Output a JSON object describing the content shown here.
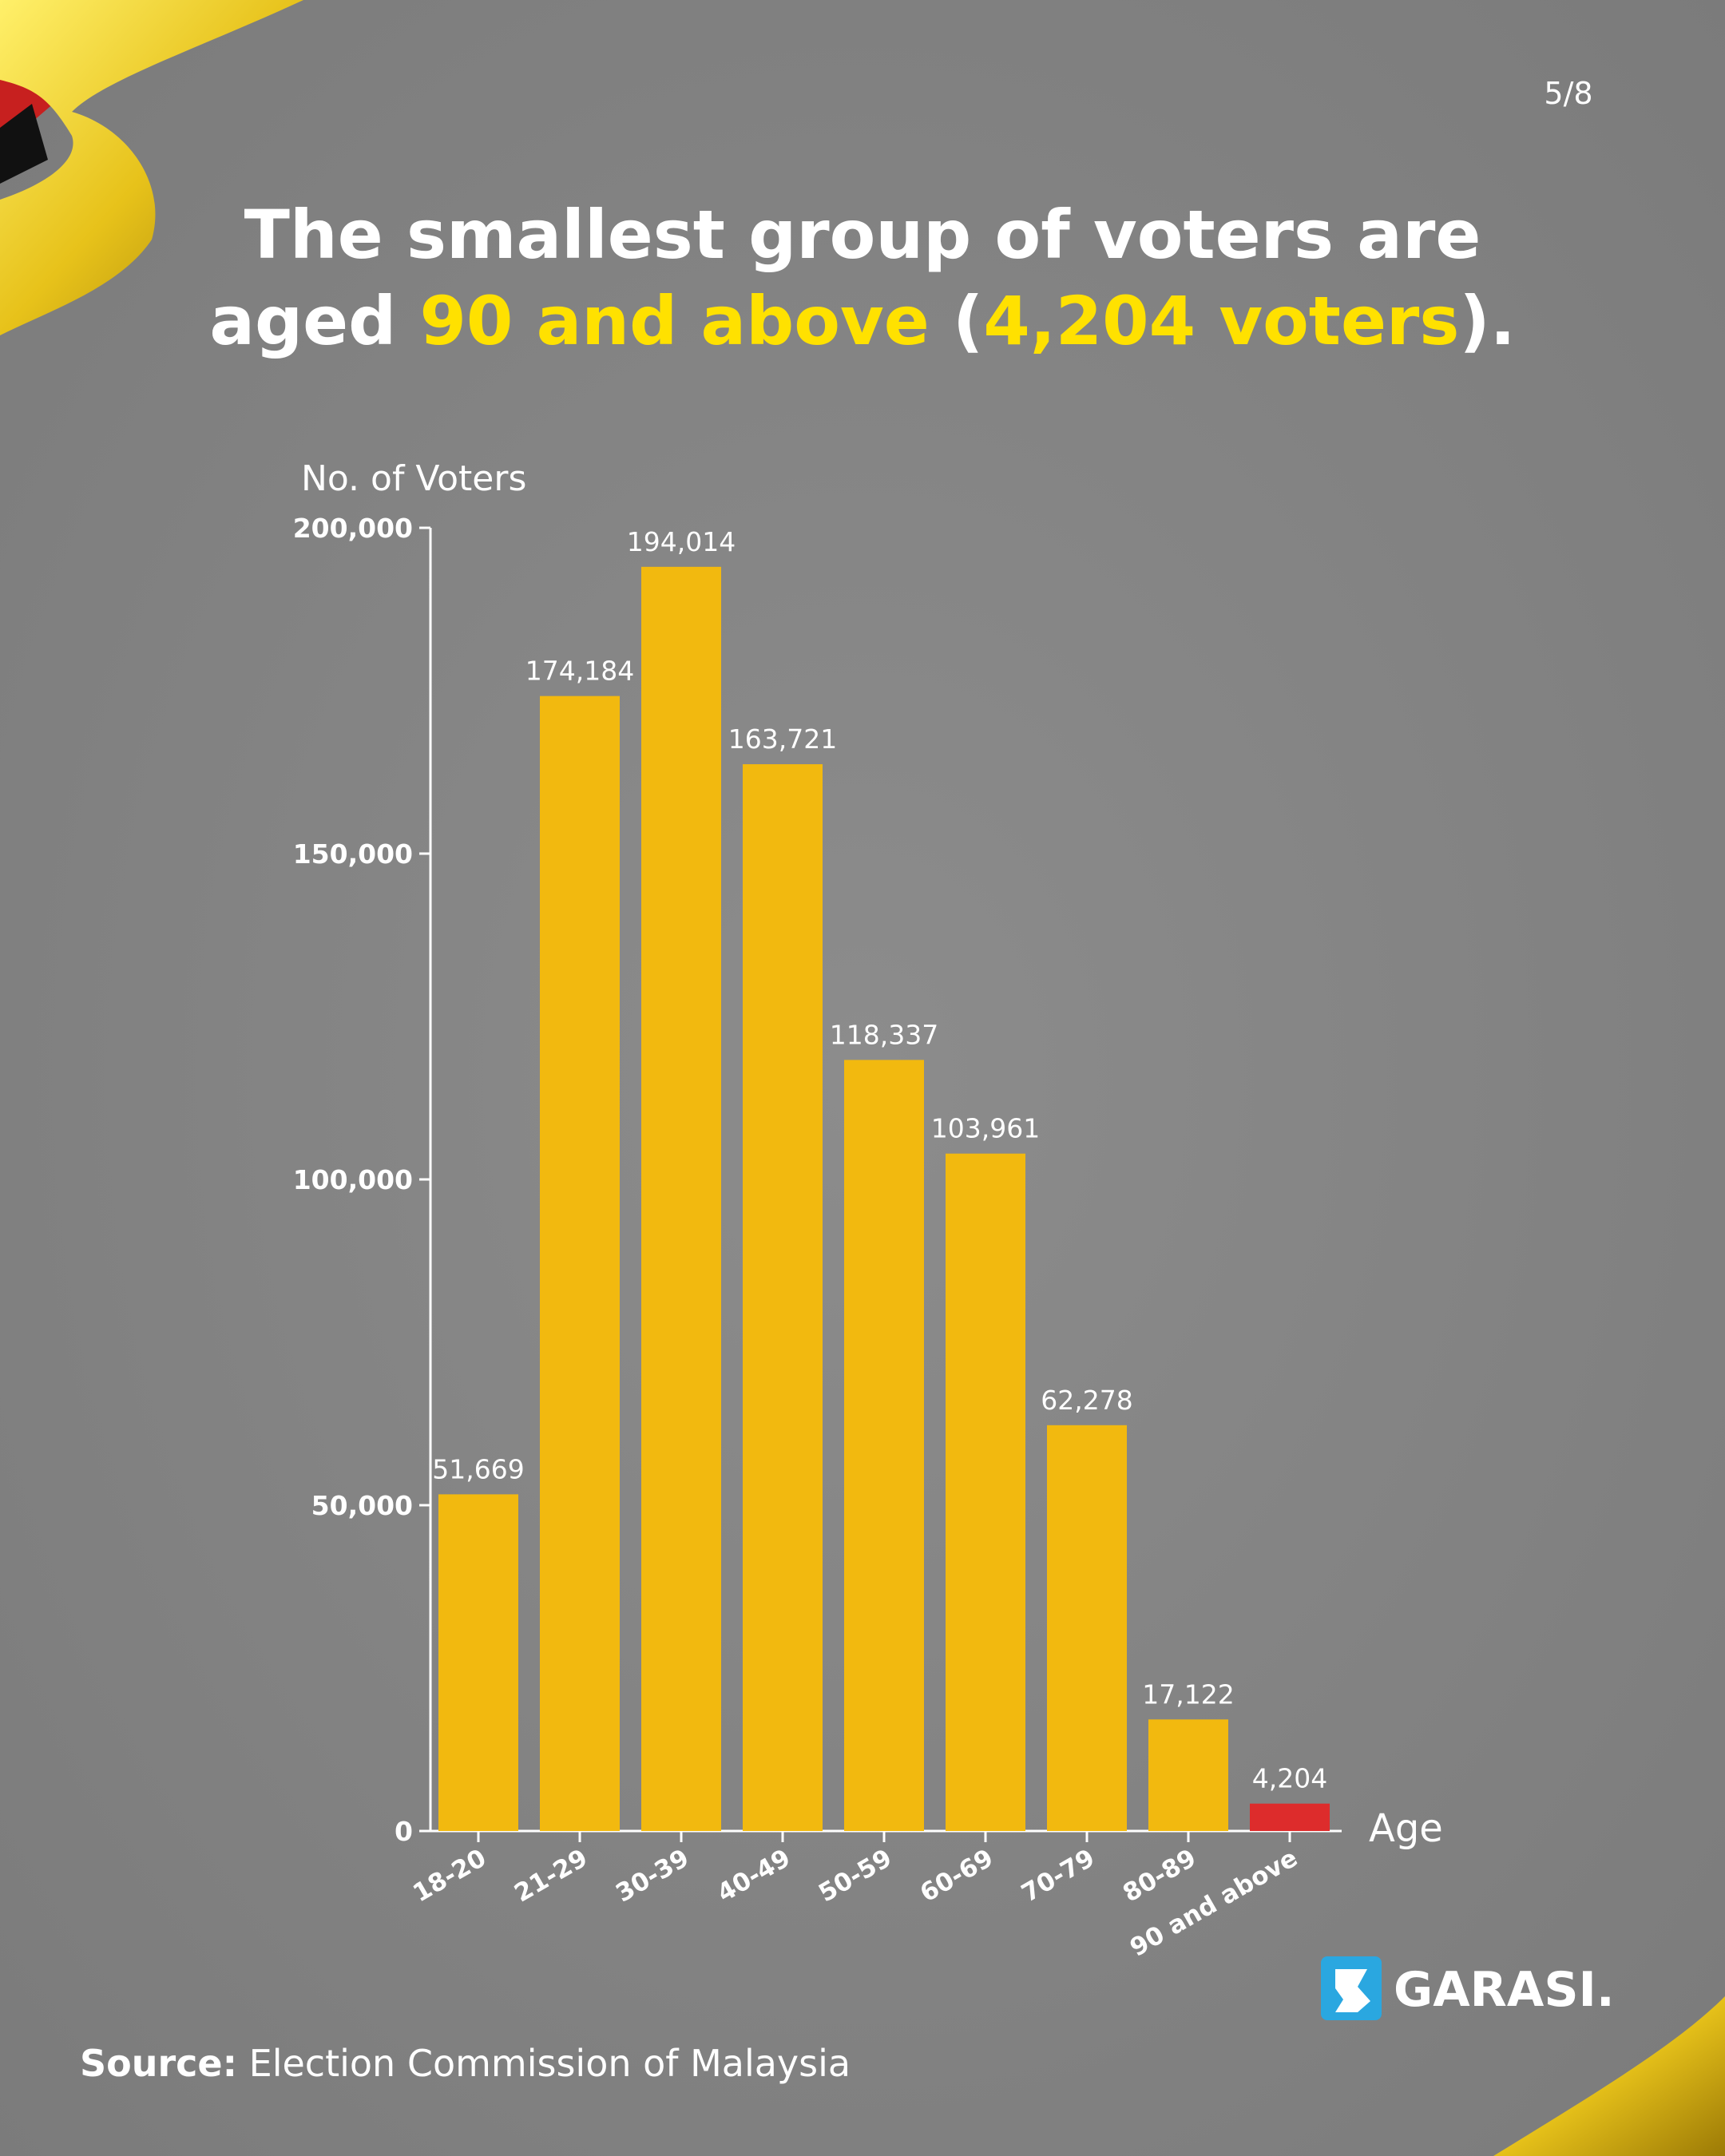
{
  "page": "5/8",
  "chart_data": {
    "type": "bar",
    "title": [
      [
        {
          "text": "The smallest group of voters are",
          "color": "#ffffff"
        }
      ],
      [
        {
          "text": "aged ",
          "color": "#ffffff"
        },
        {
          "text": "90 and above",
          "color": "#ffe100"
        },
        {
          "text": " (",
          "color": "#ffffff"
        },
        {
          "text": "4,204 voters",
          "color": "#ffe100"
        },
        {
          "text": ").",
          "color": "#ffffff"
        }
      ]
    ],
    "y_label": "No. of Voters",
    "x_label": "Age",
    "categories": [
      "18-20",
      "21-29",
      "30-39",
      "40-49",
      "50-59",
      "60-69",
      "70-79",
      "80-89",
      "90 and above"
    ],
    "values": [
      51669,
      174184,
      194014,
      163721,
      118337,
      103961,
      62278,
      17122,
      4204
    ],
    "value_labels": [
      "51,669",
      "174,184",
      "194,014",
      "163,721",
      "118,337",
      "103,961",
      "62,278",
      "17,122",
      "4,204"
    ],
    "colors": [
      "#f2b90f",
      "#f2b90f",
      "#f2b90f",
      "#f2b90f",
      "#f2b90f",
      "#f2b90f",
      "#f2b90f",
      "#f2b90f",
      "#dd2c2c"
    ],
    "ylim": [
      0,
      200000
    ],
    "yticks": [
      0,
      {
        "value": 50000,
        "label": "50,000"
      },
      {
        "value": 100000,
        "label": "100,000"
      },
      {
        "value": 150000,
        "label": "150,000"
      },
      {
        "value": 200000,
        "label": "200,000"
      }
    ],
    "grid": false
  },
  "source_label": "Source:",
  "source": "Election Commission of Malaysia",
  "logo": "GARASI."
}
